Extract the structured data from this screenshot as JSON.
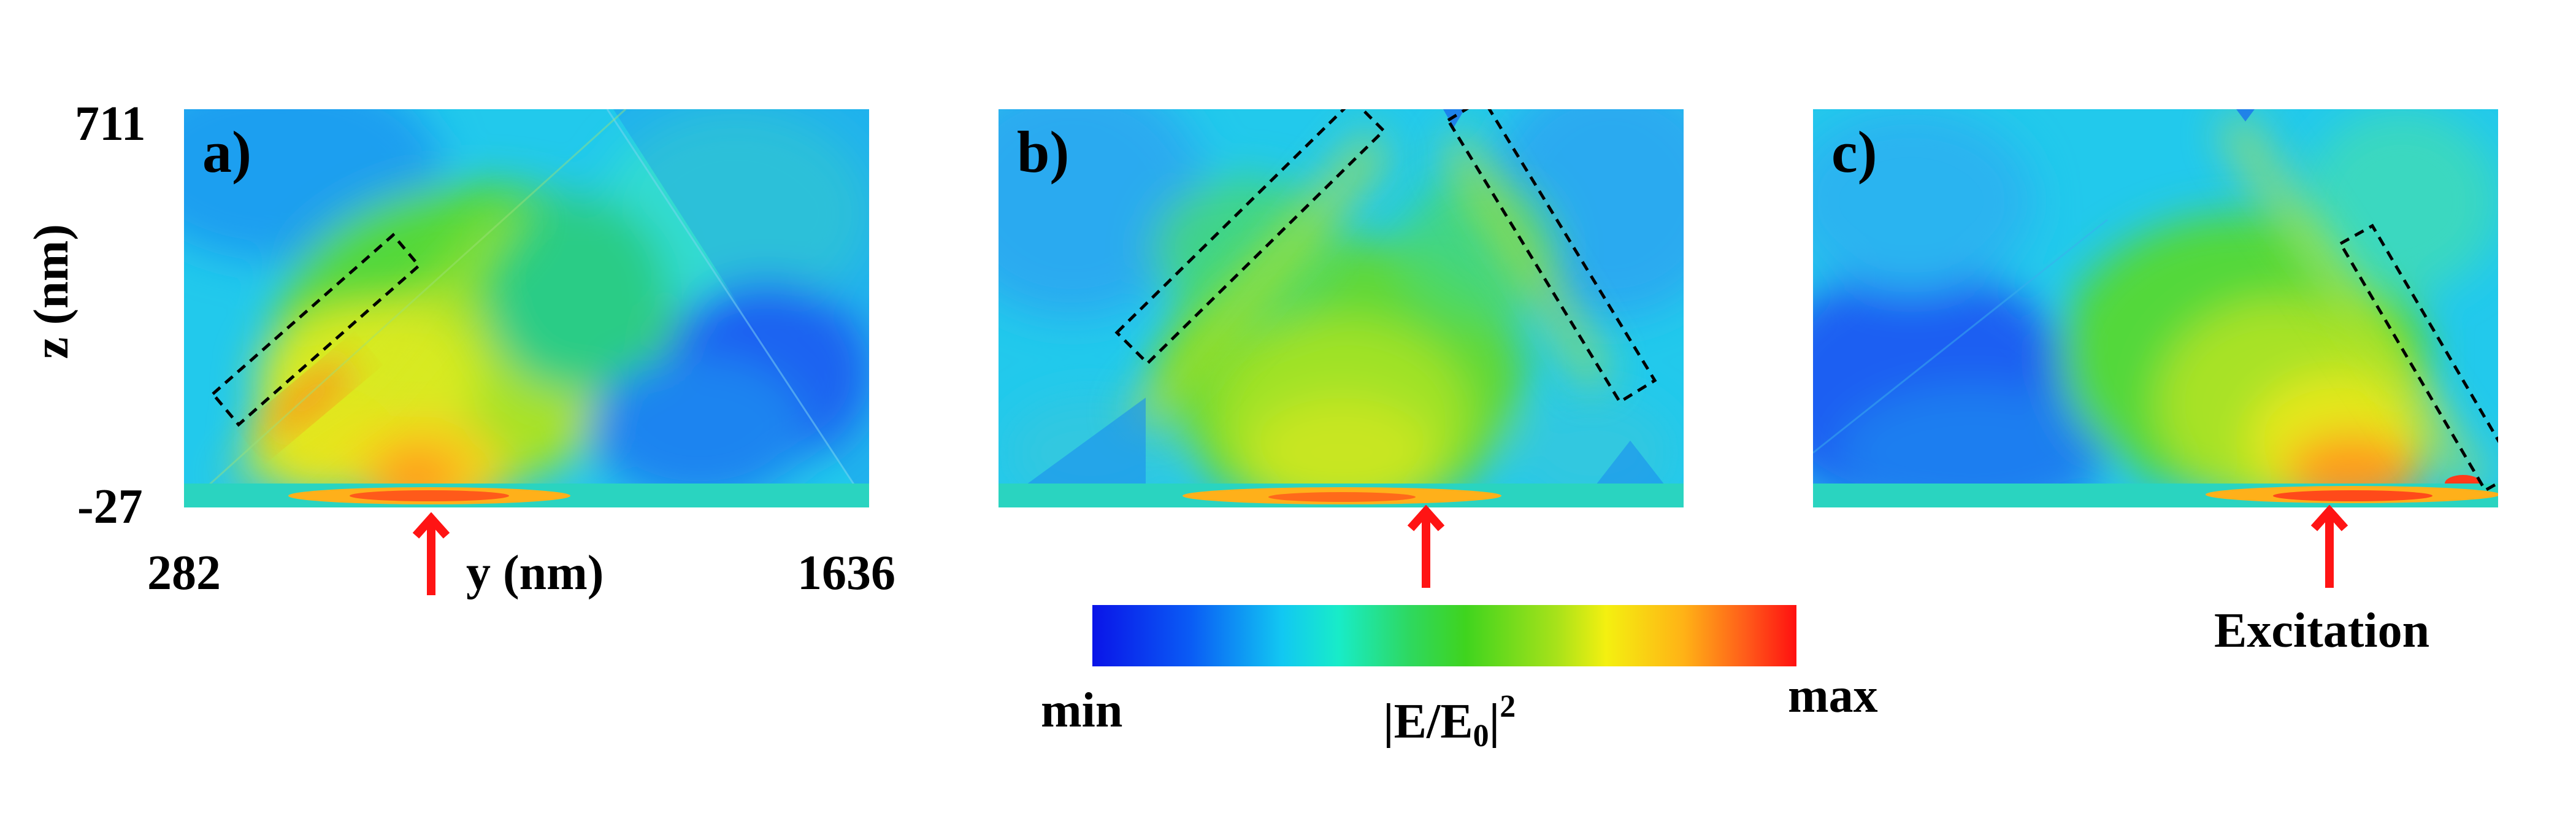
{
  "figure": {
    "panels": [
      {
        "id": "a",
        "label": "a)"
      },
      {
        "id": "b",
        "label": "b)"
      },
      {
        "id": "c",
        "label": "c)"
      }
    ],
    "axes": {
      "z_label": "z (nm)",
      "z_max_tick": "711",
      "z_min_tick": "-27",
      "y_label": "y (nm)",
      "y_min_tick": "282",
      "y_max_tick": "1636"
    },
    "excitation_label": "Excitation",
    "colorbar": {
      "min_label": "min",
      "max_label": "max",
      "quantity_label_prefix": "|E/E",
      "quantity_label_subscript": "0",
      "quantity_label_suffix": "|",
      "quantity_label_superscript": "2",
      "colormap": [
        "#0a14e8",
        "#12c8f2",
        "#2ed860",
        "#f4f010",
        "#ff1010"
      ]
    },
    "colors": {
      "arrow": "#ff1414",
      "highlight_box": "#000000"
    }
  }
}
